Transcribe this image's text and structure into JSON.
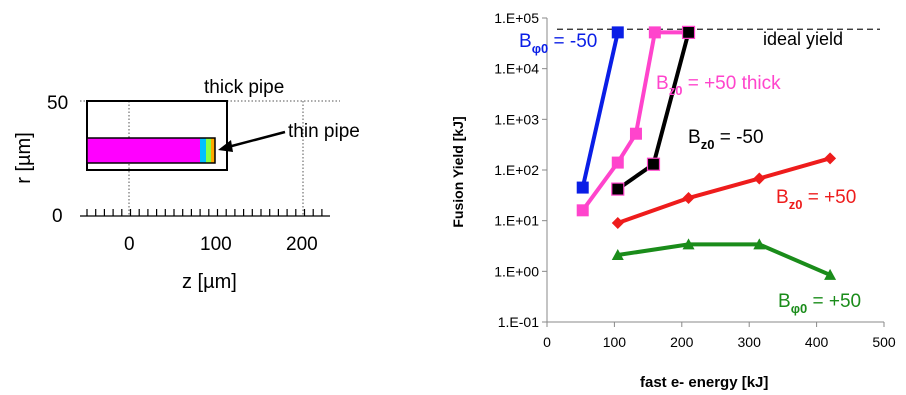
{
  "left_panel": {
    "ylabel": "r  [µm]",
    "xlabel": "z  [µm]",
    "y_ticks": [
      "50",
      "0"
    ],
    "x_ticks": [
      "0",
      "100",
      "200"
    ],
    "thick_label": "thick pipe",
    "thin_label": "thin pipe",
    "colors": {
      "box": "#000000",
      "pipe": "#ff00ff",
      "pipe_edge": "#00c0ff"
    }
  },
  "chart_data": {
    "type": "line",
    "xlabel": "fast e- energy  [kJ]",
    "ylabel": "Fusion Yield  [kJ]",
    "x_ticks": [
      "0",
      "100",
      "200",
      "300",
      "400",
      "500"
    ],
    "y_ticks": [
      "1.E+05",
      "1.E+04",
      "1.E+03",
      "1.E+02",
      "1.E+01",
      "1.E+00",
      "1.E-01"
    ],
    "xlim": [
      0,
      500
    ],
    "ylim_log10": [
      -1,
      5
    ],
    "y_scale": "log",
    "grid": false,
    "ideal_yield": {
      "label": "ideal yield",
      "value": 60000
    },
    "series": [
      {
        "label_main": "B",
        "label_sub": "φ0",
        "label_tail": " = -50",
        "color": "#0a1ee6",
        "marker": "square",
        "x": [
          53,
          105
        ],
        "y": [
          45,
          52000
        ]
      },
      {
        "label_main": "B",
        "label_sub": "z0",
        "label_tail": " = +50 thick",
        "color": "#ff44cc",
        "marker": "square",
        "x": [
          53,
          105,
          132,
          160,
          210
        ],
        "y": [
          16,
          140,
          520,
          52000,
          52000
        ]
      },
      {
        "label_main": "B",
        "label_sub": "z0",
        "label_tail": "  = -50",
        "color": "#000000",
        "marker": "square-outlined",
        "x": [
          105,
          158,
          210
        ],
        "y": [
          42,
          130,
          52000
        ]
      },
      {
        "label_main": "B",
        "label_sub": "z0",
        "label_tail": "  = +50",
        "color": "#ee1c1c",
        "marker": "diamond",
        "x": [
          105,
          210,
          315,
          420
        ],
        "y": [
          9,
          28,
          68,
          170
        ]
      },
      {
        "label_main": "B",
        "label_sub": "φ0",
        "label_tail": " = +50",
        "color": "#1a8c1a",
        "marker": "triangle",
        "x": [
          105,
          210,
          315,
          420
        ],
        "y": [
          2.1,
          3.4,
          3.4,
          0.85
        ]
      }
    ]
  }
}
